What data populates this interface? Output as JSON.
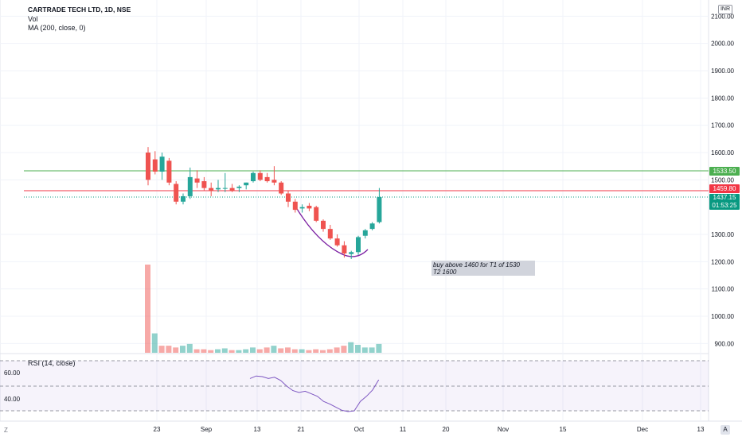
{
  "legend": {
    "symbol": "CARTRADE TECH LTD, 1D, NSE",
    "vol": "Vol",
    "ma": "MA (200, close, 0)"
  },
  "rsi": {
    "label": "RSI (14, close)",
    "ticks": [
      "60.00",
      "40.00"
    ],
    "values": [
      56,
      58,
      57.5,
      56,
      57,
      54.5,
      50,
      46.5,
      45,
      46,
      44,
      42,
      38,
      36,
      33.5,
      31,
      30,
      30.5,
      38,
      42,
      47,
      55
    ]
  },
  "currency": "INR",
  "price_axis": [
    "2100.00",
    "2000.00",
    "1900.00",
    "1800.00",
    "1700.00",
    "1600.00",
    "1500.00",
    "1300.00",
    "1200.00",
    "1100.00",
    "1000.00",
    "900.00"
  ],
  "time_axis": [
    "23",
    "Sep",
    "13",
    "21",
    "Oct",
    "11",
    "20",
    "Nov",
    "15",
    "Dec",
    "13"
  ],
  "tags": {
    "green": "1533.50",
    "red": "1459.80",
    "teal_price": "1437.15",
    "teal_time": "01:53:25"
  },
  "annotation": {
    "line1": "buy above 1460 for T1 of 1530",
    "line2": "T2 1600"
  },
  "buttons": {
    "zoom": "Z",
    "auto": "A"
  },
  "colors": {
    "up": "#26a69a",
    "down": "#ef5350",
    "green_line": "#4caf50",
    "red_line": "#f23645",
    "curve": "#7b1fa2",
    "rsi": "#7e57c2"
  },
  "chart_data": {
    "type": "candlestick",
    "candles": [
      {
        "o": 1600,
        "h": 1620,
        "l": 1480,
        "c": 1500
      },
      {
        "o": 1575,
        "h": 1605,
        "l": 1520,
        "c": 1530
      },
      {
        "o": 1530,
        "h": 1600,
        "l": 1500,
        "c": 1585
      },
      {
        "o": 1570,
        "h": 1580,
        "l": 1480,
        "c": 1490
      },
      {
        "o": 1485,
        "h": 1495,
        "l": 1410,
        "c": 1420
      },
      {
        "o": 1420,
        "h": 1450,
        "l": 1410,
        "c": 1440
      },
      {
        "o": 1440,
        "h": 1545,
        "l": 1430,
        "c": 1510
      },
      {
        "o": 1505,
        "h": 1535,
        "l": 1470,
        "c": 1490
      },
      {
        "o": 1495,
        "h": 1510,
        "l": 1460,
        "c": 1470
      },
      {
        "o": 1470,
        "h": 1490,
        "l": 1440,
        "c": 1460
      },
      {
        "o": 1465,
        "h": 1500,
        "l": 1455,
        "c": 1470
      },
      {
        "o": 1470,
        "h": 1525,
        "l": 1455,
        "c": 1470
      },
      {
        "o": 1470,
        "h": 1485,
        "l": 1455,
        "c": 1460
      },
      {
        "o": 1470,
        "h": 1480,
        "l": 1455,
        "c": 1475
      },
      {
        "o": 1480,
        "h": 1490,
        "l": 1465,
        "c": 1490
      },
      {
        "o": 1495,
        "h": 1530,
        "l": 1490,
        "c": 1525
      },
      {
        "o": 1525,
        "h": 1535,
        "l": 1495,
        "c": 1500
      },
      {
        "o": 1510,
        "h": 1525,
        "l": 1490,
        "c": 1495
      },
      {
        "o": 1500,
        "h": 1550,
        "l": 1480,
        "c": 1490
      },
      {
        "o": 1490,
        "h": 1495,
        "l": 1445,
        "c": 1450
      },
      {
        "o": 1450,
        "h": 1460,
        "l": 1400,
        "c": 1420
      },
      {
        "o": 1420,
        "h": 1430,
        "l": 1380,
        "c": 1390
      },
      {
        "o": 1395,
        "h": 1410,
        "l": 1380,
        "c": 1400
      },
      {
        "o": 1405,
        "h": 1415,
        "l": 1385,
        "c": 1395
      },
      {
        "o": 1400,
        "h": 1405,
        "l": 1345,
        "c": 1350
      },
      {
        "o": 1350,
        "h": 1355,
        "l": 1310,
        "c": 1320
      },
      {
        "o": 1320,
        "h": 1335,
        "l": 1280,
        "c": 1285
      },
      {
        "o": 1285,
        "h": 1300,
        "l": 1255,
        "c": 1260
      },
      {
        "o": 1260,
        "h": 1275,
        "l": 1215,
        "c": 1230
      },
      {
        "o": 1228,
        "h": 1240,
        "l": 1210,
        "c": 1235
      },
      {
        "o": 1235,
        "h": 1295,
        "l": 1225,
        "c": 1290
      },
      {
        "o": 1295,
        "h": 1320,
        "l": 1285,
        "c": 1315
      },
      {
        "o": 1320,
        "h": 1345,
        "l": 1315,
        "c": 1340
      },
      {
        "o": 1345,
        "h": 1470,
        "l": 1340,
        "c": 1437.15
      }
    ],
    "volume": [
      {
        "v": 100,
        "up": false
      },
      {
        "v": 22,
        "up": true
      },
      {
        "v": 8,
        "up": false
      },
      {
        "v": 8,
        "up": false
      },
      {
        "v": 6,
        "up": false
      },
      {
        "v": 8,
        "up": true
      },
      {
        "v": 10,
        "up": true
      },
      {
        "v": 4,
        "up": false
      },
      {
        "v": 4,
        "up": false
      },
      {
        "v": 3,
        "up": false
      },
      {
        "v": 4,
        "up": true
      },
      {
        "v": 5,
        "up": true
      },
      {
        "v": 3,
        "up": false
      },
      {
        "v": 3,
        "up": true
      },
      {
        "v": 4,
        "up": true
      },
      {
        "v": 6,
        "up": true
      },
      {
        "v": 4,
        "up": false
      },
      {
        "v": 6,
        "up": false
      },
      {
        "v": 8,
        "up": true
      },
      {
        "v": 5,
        "up": false
      },
      {
        "v": 6,
        "up": false
      },
      {
        "v": 4,
        "up": false
      },
      {
        "v": 4,
        "up": true
      },
      {
        "v": 3,
        "up": false
      },
      {
        "v": 4,
        "up": false
      },
      {
        "v": 3,
        "up": false
      },
      {
        "v": 4,
        "up": false
      },
      {
        "v": 6,
        "up": false
      },
      {
        "v": 8,
        "up": false
      },
      {
        "v": 12,
        "up": true
      },
      {
        "v": 9,
        "up": true
      },
      {
        "v": 6,
        "up": true
      },
      {
        "v": 6,
        "up": true
      },
      {
        "v": 10,
        "up": true
      }
    ],
    "hlines": [
      1533.5,
      1459.8
    ],
    "ylim": [
      850,
      2150
    ]
  }
}
